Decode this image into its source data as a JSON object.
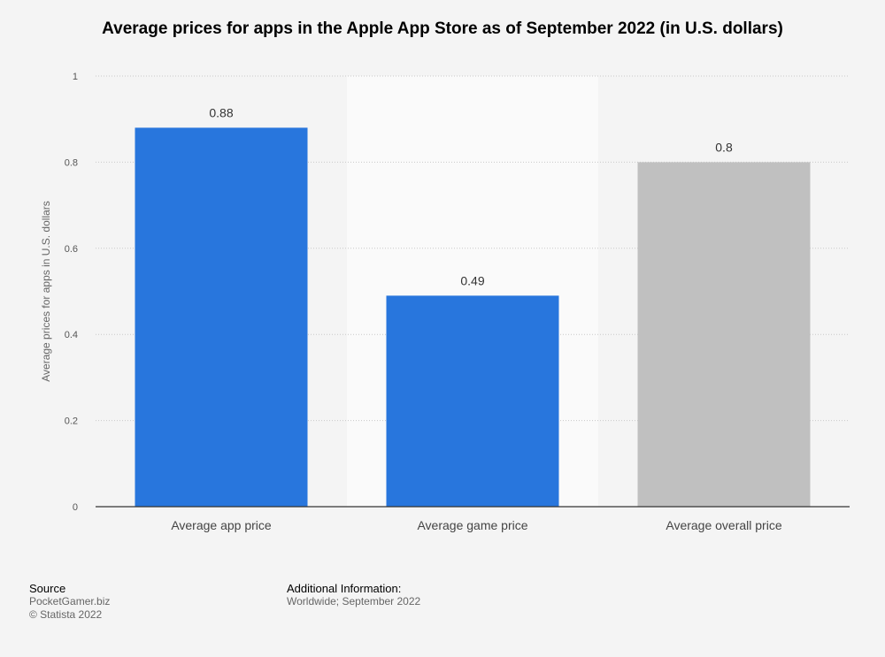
{
  "chart_data": {
    "type": "bar",
    "title": "Average prices for apps in the Apple App Store as of September 2022 (in U.S. dollars)",
    "xlabel": "",
    "ylabel": "Average prices for apps in U.S. dollars",
    "categories": [
      "Average app price",
      "Average game price",
      "Average overall price"
    ],
    "values": [
      0.88,
      0.49,
      0.8
    ],
    "value_labels": [
      "0.88",
      "0.49",
      "0.8"
    ],
    "bar_colors": [
      "#2876dd",
      "#2876dd",
      "#c0c0c0"
    ],
    "ylim": [
      0,
      1
    ],
    "yticks": [
      0,
      0.2,
      0.4,
      0.6,
      0.8,
      1
    ],
    "ytick_labels": [
      "0",
      "0.2",
      "0.4",
      "0.6",
      "0.8",
      "1"
    ],
    "grid": true,
    "highlight_band_category": 1
  },
  "footer": {
    "source_heading": "Source",
    "source_lines": [
      "PocketGamer.biz",
      "© Statista 2022"
    ],
    "info_heading": "Additional Information:",
    "info_lines": [
      "Worldwide; September 2022"
    ]
  },
  "colors": {
    "background": "#f4f4f4",
    "band": "#fafafa",
    "grid": "#c8c8c8",
    "axis": "#333333"
  }
}
